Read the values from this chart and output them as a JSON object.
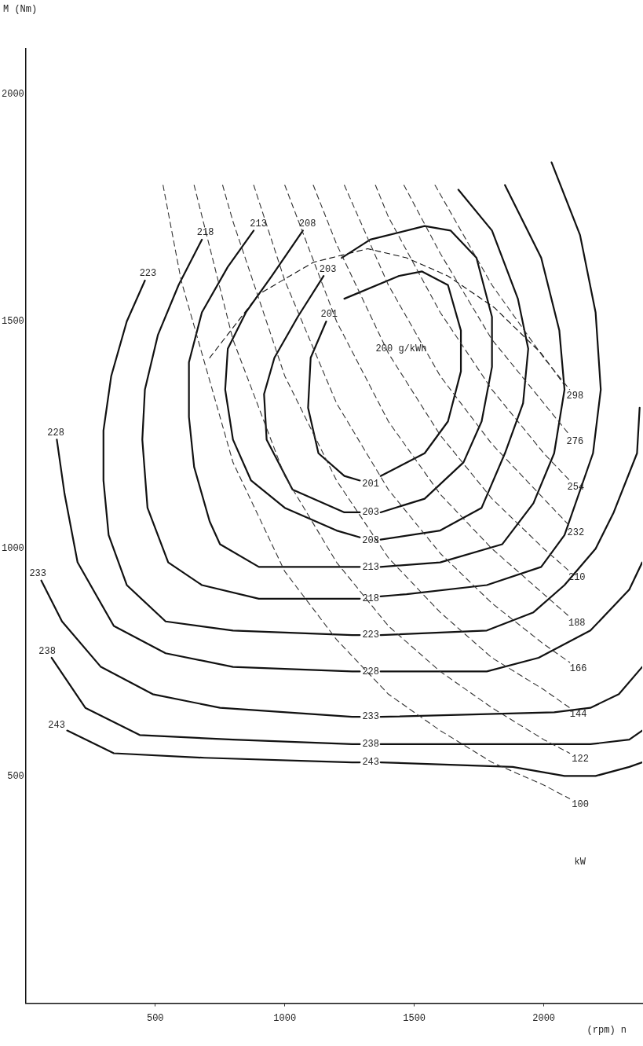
{
  "chart_data": {
    "type": "line",
    "xlabel": "(rpm) n",
    "ylabel": "M (Nm)",
    "xlim": [
      0,
      2380
    ],
    "ylim": [
      0,
      2100
    ],
    "xticks": [
      500,
      1000,
      1500,
      2000
    ],
    "yticks": [
      500,
      1000,
      1500,
      2000
    ],
    "grid": false,
    "legend": false,
    "marker": "none",
    "series": [
      {
        "name": "100",
        "line_style": "dashed",
        "color": "#333333",
        "x": [
          530,
          600,
          800,
          1000,
          1200,
          1400,
          1600,
          1800,
          2000,
          2100
        ],
        "values": [
          1800,
          1590,
          1190,
          950,
          800,
          680,
          600,
          530,
          480,
          450
        ]
      },
      {
        "name": "122",
        "line_style": "dashed",
        "color": "#333333",
        "x": [
          650,
          800,
          1000,
          1200,
          1400,
          1600,
          1800,
          2000,
          2100
        ],
        "values": [
          1800,
          1460,
          1160,
          970,
          830,
          730,
          650,
          580,
          550
        ]
      },
      {
        "name": "144",
        "line_style": "dashed",
        "color": "#333333",
        "x": [
          760,
          800,
          1000,
          1200,
          1400,
          1600,
          1800,
          2000,
          2100
        ],
        "values": [
          1800,
          1720,
          1380,
          1150,
          980,
          860,
          760,
          690,
          650
        ]
      },
      {
        "name": "166",
        "line_style": "dashed",
        "color": "#333333",
        "x": [
          880,
          1000,
          1200,
          1400,
          1600,
          1800,
          2000,
          2100
        ],
        "values": [
          1800,
          1590,
          1320,
          1130,
          990,
          880,
          790,
          750
        ]
      },
      {
        "name": "188",
        "line_style": "dashed",
        "color": "#333333",
        "x": [
          1000,
          1200,
          1400,
          1600,
          1800,
          2000,
          2100
        ],
        "values": [
          1800,
          1500,
          1280,
          1120,
          1000,
          900,
          850
        ]
      },
      {
        "name": "210",
        "line_style": "dashed",
        "color": "#333333",
        "x": [
          1110,
          1200,
          1400,
          1600,
          1800,
          2000,
          2100
        ],
        "values": [
          1800,
          1670,
          1430,
          1250,
          1110,
          1000,
          950
        ]
      },
      {
        "name": "232",
        "line_style": "dashed",
        "color": "#333333",
        "x": [
          1230,
          1400,
          1600,
          1800,
          2000,
          2100
        ],
        "values": [
          1800,
          1580,
          1380,
          1230,
          1110,
          1050
        ]
      },
      {
        "name": "254",
        "line_style": "dashed",
        "color": "#333333",
        "x": [
          1350,
          1400,
          1600,
          1800,
          2000,
          2100
        ],
        "values": [
          1800,
          1730,
          1520,
          1350,
          1210,
          1150
        ]
      },
      {
        "name": "276",
        "line_style": "dashed",
        "color": "#333333",
        "x": [
          1460,
          1600,
          1800,
          2000,
          2100
        ],
        "values": [
          1800,
          1650,
          1460,
          1320,
          1250
        ]
      },
      {
        "name": "298",
        "line_style": "dashed",
        "color": "#333333",
        "x": [
          1580,
          1800,
          2000,
          2100
        ],
        "values": [
          1800,
          1580,
          1420,
          1350
        ]
      },
      {
        "line_style": "dashed",
        "color": "#111111",
        "x": [
          710,
          900,
          1110,
          1320,
          1470,
          1630,
          1810,
          1990,
          2080
        ],
        "values": [
          1420,
          1560,
          1630,
          1660,
          1640,
          1600,
          1530,
          1430,
          1360
        ]
      },
      {
        "name": "201",
        "line_style": "solid",
        "color": "#111111",
        "x": [
          1290,
          1230,
          1130,
          1090,
          1100,
          1160
        ],
        "values": [
          1150,
          1160,
          1210,
          1310,
          1420,
          1500
        ]
      },
      {
        "line_style": "solid",
        "color": "#111111",
        "x": [
          1230,
          1440,
          1530,
          1630,
          1680,
          1680,
          1630,
          1540,
          1370
        ],
        "values": [
          1550,
          1600,
          1610,
          1580,
          1480,
          1390,
          1280,
          1210,
          1160
        ]
      },
      {
        "name": "203",
        "line_style": "solid",
        "color": "#111111",
        "x": [
          1290,
          1230,
          1030,
          930,
          920,
          960,
          1050,
          1150
        ],
        "values": [
          1080,
          1080,
          1130,
          1240,
          1340,
          1420,
          1510,
          1600
        ]
      },
      {
        "line_style": "solid",
        "color": "#111111",
        "x": [
          1220,
          1330,
          1540,
          1640,
          1740,
          1800,
          1800,
          1760,
          1690,
          1540,
          1370
        ],
        "values": [
          1640,
          1680,
          1710,
          1700,
          1640,
          1510,
          1400,
          1280,
          1190,
          1110,
          1080
        ]
      },
      {
        "name": "208",
        "line_style": "solid",
        "color": "#111111",
        "x": [
          1070,
          950,
          850,
          780,
          770,
          800,
          870,
          1000,
          1200,
          1290
        ],
        "values": [
          1700,
          1600,
          1520,
          1440,
          1350,
          1240,
          1150,
          1090,
          1040,
          1025
        ]
      },
      {
        "line_style": "solid",
        "color": "#111111",
        "x": [
          1370,
          1600,
          1760,
          1850,
          1920,
          1940,
          1900,
          1800,
          1670
        ],
        "values": [
          1020,
          1040,
          1090,
          1210,
          1320,
          1440,
          1550,
          1700,
          1790
        ]
      },
      {
        "name": "213",
        "line_style": "solid",
        "color": "#111111",
        "x": [
          880,
          780,
          680,
          630,
          630,
          650,
          710,
          750,
          900,
          1260,
          1290
        ],
        "values": [
          1700,
          1620,
          1520,
          1410,
          1290,
          1180,
          1060,
          1010,
          960,
          960,
          960
        ]
      },
      {
        "line_style": "solid",
        "color": "#111111",
        "x": [
          1370,
          1600,
          1840,
          1960,
          2040,
          2080,
          2060,
          1990,
          1850
        ],
        "values": [
          960,
          970,
          1010,
          1100,
          1210,
          1350,
          1480,
          1640,
          1800
        ]
      },
      {
        "name": "218",
        "line_style": "solid",
        "color": "#111111",
        "x": [
          680,
          590,
          510,
          460,
          450,
          470,
          550,
          680,
          900,
          1260,
          1290
        ],
        "values": [
          1680,
          1580,
          1470,
          1350,
          1240,
          1090,
          970,
          920,
          890,
          890,
          890
        ]
      },
      {
        "line_style": "solid",
        "color": "#111111",
        "x": [
          1370,
          1470,
          1780,
          1990,
          2080,
          2190,
          2220,
          2200,
          2140,
          2030
        ],
        "values": [
          895,
          900,
          920,
          960,
          1030,
          1210,
          1350,
          1520,
          1690,
          1850
        ]
      },
      {
        "name": "223",
        "line_style": "solid",
        "color": "#111111",
        "x": [
          460,
          390,
          330,
          300,
          300,
          320,
          390,
          540,
          800,
          1260,
          1290
        ],
        "values": [
          1590,
          1500,
          1380,
          1260,
          1150,
          1030,
          920,
          840,
          820,
          810,
          810
        ]
      },
      {
        "line_style": "solid",
        "color": "#111111",
        "x": [
          1370,
          1780,
          1960,
          2080,
          2200,
          2270,
          2360,
          2370
        ],
        "values": [
          810,
          820,
          860,
          920,
          1000,
          1080,
          1210,
          1310
        ]
      },
      {
        "name": "228",
        "line_style": "solid",
        "color": "#111111",
        "x": [
          120,
          150,
          200,
          340,
          540,
          800,
          1260,
          1290
        ],
        "values": [
          1240,
          1120,
          970,
          830,
          770,
          740,
          730,
          730
        ]
      },
      {
        "line_style": "solid",
        "color": "#111111",
        "x": [
          1370,
          1780,
          1980,
          2180,
          2330,
          2380
        ],
        "values": [
          730,
          730,
          760,
          820,
          910,
          970
        ]
      },
      {
        "name": "233",
        "line_style": "solid",
        "color": "#111111",
        "x": [
          60,
          140,
          290,
          490,
          750,
          1260,
          1290
        ],
        "values": [
          930,
          840,
          740,
          680,
          650,
          630,
          630
        ]
      },
      {
        "line_style": "solid",
        "color": "#111111",
        "x": [
          1370,
          2040,
          2180,
          2290,
          2380
        ],
        "values": [
          630,
          640,
          650,
          680,
          740
        ]
      },
      {
        "name": "238",
        "line_style": "solid",
        "color": "#111111",
        "x": [
          100,
          230,
          440,
          800,
          1260,
          1290
        ],
        "values": [
          760,
          650,
          590,
          580,
          570,
          570
        ]
      },
      {
        "line_style": "solid",
        "color": "#111111",
        "x": [
          1370,
          1980,
          2180,
          2330,
          2380
        ],
        "values": [
          570,
          570,
          570,
          580,
          600
        ]
      },
      {
        "name": "243",
        "line_style": "solid",
        "color": "#111111",
        "x": [
          160,
          340,
          690,
          1260,
          1290
        ],
        "values": [
          600,
          550,
          540,
          530,
          530
        ]
      },
      {
        "line_style": "solid",
        "color": "#111111",
        "x": [
          1370,
          1880,
          2080,
          2200,
          2330,
          2380
        ],
        "values": [
          530,
          520,
          500,
          500,
          520,
          530
        ]
      }
    ],
    "annotations": [
      "200 g/kWh",
      "kW"
    ]
  }
}
